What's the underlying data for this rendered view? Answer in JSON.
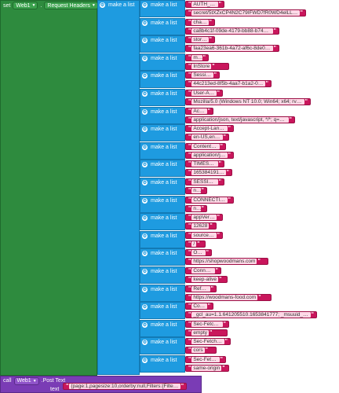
{
  "set_block": {
    "keyword_set": "set",
    "component": "Web1",
    "property": "Request Headers",
    "keyword_to": "to"
  },
  "outer_list": {
    "label": "make a list"
  },
  "pairs": [
    {
      "make_list": "make a list",
      "key": "AUTH_TOKEN",
      "value": "secret/5tXZxCP4N2C79IFWD7fR0WD4elLL2n4YJtA4JNBR..."
    },
    {
      "make_list": "make a list",
      "key": "chainID",
      "value": "ca8b4c1f-09de-4179-bb88-b7495cfb4de1"
    },
    {
      "make_list": "make a list",
      "key": "storeID",
      "value": "faa23ea6-361b-4a72-af6c-8de0fc824276"
    },
    {
      "make_list": "make a list",
      "key": "mode",
      "value": "InStore"
    },
    {
      "make_list": "make a list",
      "key": "SessionKey",
      "value": "44c213ed-8f5b-4aa7-b1a2-061a1e2f188a"
    },
    {
      "make_list": "make a list",
      "key": "User-Agent",
      "value": "Mozilla/5.0 (Windows NT 10.0; Win64; x64; rv:100...."
    },
    {
      "make_list": "make a list",
      "key": "Accept",
      "value": "application/json, text/javascript, */*; q=0.01"
    },
    {
      "make_list": "make a list",
      "key": "Accept-Language",
      "value": "en-US,en;q=0.5"
    },
    {
      "make_list": "make a list",
      "key": "Content-Type",
      "value": "application/json"
    },
    {
      "make_list": "make a list",
      "key": "TIMESTAMP",
      "value": "1653841913715"
    },
    {
      "make_list": "make a list",
      "key": "SESSION_ID",
      "value": "null"
    },
    {
      "make_list": "make a list",
      "key": "CONNECTION_ID",
      "value": "null"
    },
    {
      "make_list": "make a list",
      "key": "appVersion",
      "value": "12628"
    },
    {
      "make_list": "make a list",
      "key": "sourcepage",
      "value": "/"
    },
    {
      "make_list": "make a list",
      "key": "Origin",
      "value": "https://shopwoodmans.com"
    },
    {
      "make_list": "make a list",
      "key": "Connection",
      "value": "keep-alive"
    },
    {
      "make_list": "make a list",
      "key": "Referer",
      "value": "https://woodmans-food.com"
    },
    {
      "make_list": "make a list",
      "key": "Cookie",
      "value": "_gcl_au=1.1.641205510.1653841777; _msuuid_1gvot5..."
    },
    {
      "make_list": "make a list",
      "key": "Sec-Fetch-Dest",
      "value": "empty"
    },
    {
      "make_list": "make a list",
      "key": "Sec-Fetch-Mode",
      "value": "cors"
    },
    {
      "make_list": "make a list",
      "key": "Sec-Fetch-Site",
      "value": "same-origin"
    }
  ],
  "call_block": {
    "keyword_call": "call",
    "component": "Web1",
    "method": ".Post Text",
    "param_label": "text",
    "text_value": "{page:1,pagesize:10,orderby:null,Filters:{Filter..."
  }
}
